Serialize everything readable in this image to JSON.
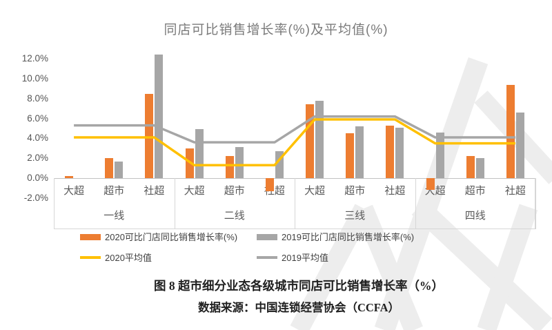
{
  "title": "同店可比销售增长率(%)及平均值(%)",
  "legend": {
    "bar2020": "2020可比门店同比销售增长率(%)",
    "bar2019": "2019可比门店同比销售增长率(%)",
    "avg2020": "2020平均值",
    "avg2019": "2019平均值"
  },
  "caption": {
    "line1": "图 8 超市细分业态各级城市同店可比销售增长率（%）",
    "line2": "数据来源：中国连锁经营协会（CCFA）"
  },
  "colors": {
    "bar_2020": "#ED7D31",
    "bar_2019": "#A6A6A6",
    "line_2020": "#FFC000",
    "line_2019": "#A6A6A6",
    "axis_text": "#595959",
    "title_text": "#7B7B7B",
    "watermark": "#ededed"
  },
  "chart_data": {
    "type": "bar",
    "title": "同店可比销售增长率(%)及平均值(%)",
    "group_labels": [
      "一线",
      "二线",
      "三线",
      "四线"
    ],
    "sub_labels": [
      "大超",
      "超市",
      "社超"
    ],
    "categories": [
      "一线 大超",
      "一线 超市",
      "一线 社超",
      "二线 大超",
      "二线 超市",
      "二线 社超",
      "三线 大超",
      "三线 超市",
      "三线 社超",
      "四线 大超",
      "四线 超市",
      "四线 社超"
    ],
    "series": [
      {
        "name": "2020可比门店同比销售增长率(%)",
        "kind": "bar",
        "color": "#ED7D31",
        "values": [
          0.2,
          2.0,
          8.5,
          3.0,
          2.2,
          -1.3,
          7.4,
          4.5,
          5.3,
          -1.2,
          2.2,
          9.4
        ]
      },
      {
        "name": "2019可比门店同比销售增长率(%)",
        "kind": "bar",
        "color": "#A6A6A6",
        "values": [
          0.0,
          1.7,
          12.4,
          4.9,
          3.1,
          2.7,
          7.8,
          5.2,
          5.1,
          4.6,
          2.0,
          6.6
        ]
      },
      {
        "name": "2020平均值",
        "kind": "line",
        "color": "#FFC000",
        "values_per_group": [
          4.1,
          1.3,
          5.9,
          3.5
        ]
      },
      {
        "name": "2019平均值",
        "kind": "line",
        "color": "#A6A6A6",
        "values_per_group": [
          5.3,
          3.6,
          6.2,
          4.1
        ]
      }
    ],
    "y_axis": {
      "ticks": [
        "12.0%",
        "10.0%",
        "8.0%",
        "6.0%",
        "4.0%",
        "2.0%",
        "0.0%",
        "-2.0%"
      ],
      "tick_values": [
        12,
        10,
        8,
        6,
        4,
        2,
        0,
        -2
      ],
      "min": -2,
      "max": 12.5
    },
    "grid": false,
    "legend_position": "bottom"
  }
}
